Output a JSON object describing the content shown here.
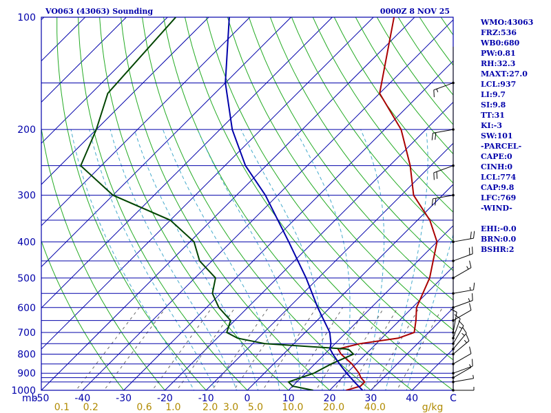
{
  "header": {
    "station_title": "VO063 (43063) Sounding",
    "time_title": "0000Z  8 NOV 25"
  },
  "indices": [
    "WMO:43063",
    "FRZ:536",
    "WB0:680",
    "PW:0.81",
    "RH:32.3",
    "MAXT:27.0",
    "LCL:937",
    "LI:9.7",
    "SI:9.8",
    "TT:31",
    "KI:-3",
    "SW:101",
    "-PARCEL-",
    "CAPE:0",
    "CINH:0",
    "LCL:774",
    "CAP:9.8",
    "LFC:769",
    "-WIND-",
    "",
    "EHI:-0.0",
    "BRN:0.0",
    "BSHR:2"
  ],
  "colors": {
    "frame": "#0000aa",
    "isobar": "#0000aa",
    "isotherm": "#0000aa",
    "dry_adiabat": "#22aa22",
    "moist_adiabat": "#44aacc",
    "mixing_ratio": "#666666",
    "temperature": "#aa0000",
    "dewpoint": "#004400",
    "parcel": "#0000aa",
    "wind_barb": "#000000",
    "mixing_label": "#b08a00"
  },
  "chart_data": {
    "type": "line",
    "title": "VO063 (43063) Sounding",
    "xlabel": "C",
    "ylabel": "mb",
    "xlim": [
      -50,
      50
    ],
    "ylim": [
      1000,
      100
    ],
    "y_scale": "log",
    "pressure_labels": [
      "100",
      "200",
      "300",
      "400",
      "500",
      "600",
      "700",
      "800",
      "900",
      "1000"
    ],
    "pressure_ticks": [
      100,
      200,
      300,
      400,
      500,
      600,
      700,
      800,
      900,
      1000
    ],
    "isobars": [
      100,
      150,
      200,
      250,
      300,
      350,
      400,
      450,
      500,
      550,
      600,
      650,
      700,
      750,
      800,
      850,
      900,
      925,
      950,
      1000
    ],
    "temperature_labels": [
      "-50",
      "-40",
      "-30",
      "-20",
      "-10",
      "0",
      "10",
      "20",
      "30",
      "40"
    ],
    "temperature_ticks": [
      -50,
      -40,
      -30,
      -20,
      -10,
      0,
      10,
      20,
      30,
      40
    ],
    "mixing_ratio_labels": [
      "0.1",
      "0.2",
      "0.6",
      "1.0",
      "2.0",
      "3.0",
      "5.0",
      "10.0",
      "20.0",
      "40.0",
      "g/kg"
    ],
    "mixing_ratio_positions": [
      -45,
      -38,
      -25,
      -18,
      -9,
      -4,
      2,
      11,
      21,
      31,
      45
    ],
    "series": [
      {
        "name": "",
        "role": "temperature",
        "p": [
          1000,
          975,
          950,
          925,
          900,
          850,
          800,
          775,
          750,
          725,
          700,
          650,
          600,
          500,
          400,
          350,
          300,
          250,
          200,
          160,
          100
        ],
        "t": [
          24,
          26.5,
          26.5,
          24.5,
          23,
          19,
          14,
          12,
          16,
          24,
          26.5,
          24,
          21,
          17,
          10,
          3,
          -7,
          -15,
          -26,
          -40,
          -55
        ]
      },
      {
        "name": "",
        "role": "dewpoint",
        "p": [
          1000,
          975,
          950,
          925,
          900,
          850,
          800,
          780,
          775,
          750,
          725,
          700,
          650,
          600,
          550,
          500,
          450,
          400,
          350,
          300,
          250,
          200,
          160,
          100
        ],
        "t": [
          16,
          10,
          8,
          10,
          12,
          14,
          17,
          15,
          14,
          -7,
          -15,
          -19,
          -21,
          -27,
          -32,
          -35,
          -43,
          -49,
          -60,
          -80,
          -95,
          -100,
          -106,
          -108
        ]
      },
      {
        "name": "",
        "role": "parcel",
        "p": [
          1000,
          950,
          900,
          850,
          800,
          774,
          750,
          700,
          600,
          500,
          400,
          300,
          250,
          200,
          150,
          100
        ],
        "t": [
          28,
          24,
          20,
          16,
          12,
          10,
          9,
          6,
          -3,
          -13,
          -26,
          -43,
          -55,
          -67,
          -80,
          -95
        ]
      }
    ],
    "wind_barbs": [
      {
        "p": 1000,
        "spd": 5,
        "dir": 90
      },
      {
        "p": 950,
        "spd": 5,
        "dir": 80
      },
      {
        "p": 925,
        "spd": 5,
        "dir": 60
      },
      {
        "p": 900,
        "spd": 10,
        "dir": 70
      },
      {
        "p": 850,
        "spd": 10,
        "dir": 60
      },
      {
        "p": 800,
        "spd": 15,
        "dir": 50
      },
      {
        "p": 775,
        "spd": 15,
        "dir": 40
      },
      {
        "p": 750,
        "spd": 15,
        "dir": 30
      },
      {
        "p": 725,
        "spd": 10,
        "dir": 20
      },
      {
        "p": 700,
        "spd": 10,
        "dir": 10
      },
      {
        "p": 650,
        "spd": 10,
        "dir": 60
      },
      {
        "p": 600,
        "spd": 15,
        "dir": 70
      },
      {
        "p": 550,
        "spd": 15,
        "dir": 80
      },
      {
        "p": 500,
        "spd": 15,
        "dir": 60
      },
      {
        "p": 450,
        "spd": 20,
        "dir": 70
      },
      {
        "p": 400,
        "spd": 20,
        "dir": 80
      },
      {
        "p": 300,
        "spd": 20,
        "dir": 260
      },
      {
        "p": 250,
        "spd": 20,
        "dir": 250
      },
      {
        "p": 200,
        "spd": 20,
        "dir": 260
      },
      {
        "p": 150,
        "spd": 15,
        "dir": 250
      }
    ]
  }
}
